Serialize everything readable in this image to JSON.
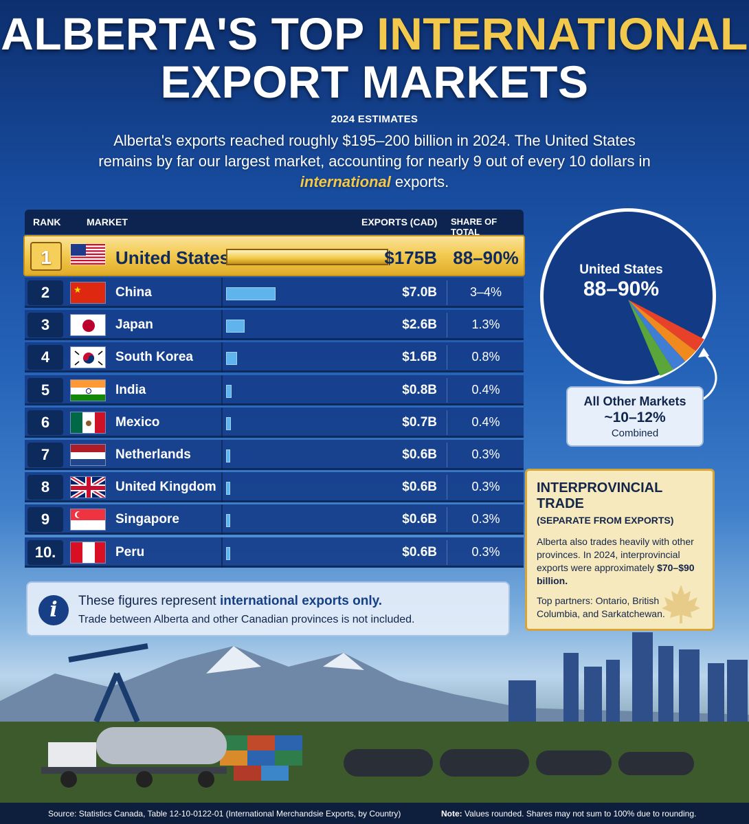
{
  "header": {
    "title_part1": "ALBERTA'S TOP ",
    "title_part2": "INTERNATIONAL",
    "title_part3": "EXPORT MARKETS",
    "estimates": "2024 ESTIMATES",
    "lead_1": "Alberta's exports reached roughly $195–200 billion in 2024. The United States remains by far our largest market, accounting for nearly 9 out of every 10 dollars in ",
    "lead_em": "international",
    "lead_2": " exports."
  },
  "table": {
    "columns": {
      "rank": "RANK",
      "market": "MARKET",
      "exports": "EXPORTS (CAD)",
      "share": "SHARE OF TOTAL"
    }
  },
  "chart_data": [
    {
      "type": "bar",
      "categories": [
        "United States",
        "China",
        "Japan",
        "South Korea",
        "India",
        "Mexico",
        "Netherlands",
        "United Kingdom",
        "Singapore",
        "Peru"
      ],
      "ranks": [
        "1",
        "2",
        "3",
        "4",
        "5",
        "6",
        "7",
        "8",
        "9",
        "10."
      ],
      "values": [
        175,
        7.0,
        2.6,
        1.6,
        0.8,
        0.7,
        0.6,
        0.6,
        0.6,
        0.6
      ],
      "value_labels": [
        "$175B",
        "$7.0B",
        "$2.6B",
        "$1.6B",
        "$0.8B",
        "$0.7B",
        "$0.6B",
        "$0.6B",
        "$0.6B",
        "$0.6B"
      ],
      "share_labels": [
        "88–90%",
        "3–4%",
        "1.3%",
        "0.8%",
        "0.4%",
        "0.4%",
        "0.3%",
        "0.3%",
        "0.3%",
        "0.3%"
      ],
      "flags": [
        "us-flag",
        "china-flag",
        "japan-flag",
        "south-korea-flag",
        "india-flag",
        "mexico-flag",
        "netherlands-flag",
        "uk-flag",
        "singapore-flag",
        "peru-flag"
      ]
    },
    {
      "type": "pie",
      "categories": [
        "United States",
        "All Other Markets"
      ],
      "values": [
        89,
        11
      ],
      "slice_colors": [
        "#123a85",
        "#e8412a",
        "#f08a1e",
        "#3f7ed4",
        "#5aa63a"
      ],
      "labels": {
        "us_name": "United States",
        "us_share": "88–90%",
        "others_name": "All Other Markets",
        "others_share": "~10–12%",
        "others_note": "Combined"
      }
    }
  ],
  "interprovincial": {
    "heading": "INTERPROVINCIAL TRADE",
    "subheading": "(SEPARATE FROM EXPORTS)",
    "body": "Alberta also trades heavily with other provinces. In 2024, interprovincial exports were approximately",
    "amount": "$70–$90 billion.",
    "partners": "Top partners: Ontario, British Columbia, and Sarkatchewan."
  },
  "note": {
    "line1_a": "These figures represent ",
    "line1_b": "international exports only.",
    "line2": "Trade between Alberta and other Canadian provinces is not included.",
    "icon": "info-icon"
  },
  "footer": {
    "source": "Source: Statistics Canada, Table 12-10-0122-01 (International Merchandsie Exports, by Country)",
    "note_label": "Note:",
    "note_text": " Values rounded. Shares may not sum to 100% due to rounding."
  },
  "colors": {
    "gold": "#f2c94c",
    "navy": "#0c244f",
    "bar": "#5fb4ee"
  }
}
